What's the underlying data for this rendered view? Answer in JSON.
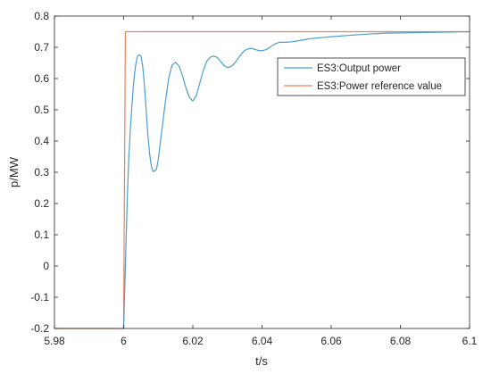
{
  "chart_data": {
    "type": "line",
    "title": "",
    "xlabel": "t/s",
    "ylabel": "p/MW",
    "xlim": [
      5.98,
      6.1
    ],
    "ylim": [
      -0.2,
      0.8
    ],
    "xticks": [
      "5.98",
      "6",
      "6.02",
      "6.04",
      "6.06",
      "6.08",
      "6.1"
    ],
    "yticks": [
      "-0.2",
      "-0.1",
      "0",
      "0.1",
      "0.2",
      "0.3",
      "0.4",
      "0.5",
      "0.6",
      "0.7",
      "0.8"
    ],
    "grid": false,
    "legend_position": "top-right",
    "colors": {
      "output": "#4a9fce",
      "reference": "#e8825e",
      "axis": "#262626"
    },
    "series": [
      {
        "name": "ES3:Output power",
        "key": "output",
        "points": [
          [
            6.0,
            -0.2
          ],
          [
            6.0005,
            0.0
          ],
          [
            6.001,
            0.2
          ],
          [
            6.0015,
            0.35
          ],
          [
            6.002,
            0.45
          ],
          [
            6.0025,
            0.53
          ],
          [
            6.003,
            0.6
          ],
          [
            6.0035,
            0.645
          ],
          [
            6.004,
            0.672
          ],
          [
            6.0045,
            0.676
          ],
          [
            6.005,
            0.672
          ],
          [
            6.0055,
            0.64
          ],
          [
            6.006,
            0.58
          ],
          [
            6.0065,
            0.5
          ],
          [
            6.007,
            0.42
          ],
          [
            6.0075,
            0.36
          ],
          [
            6.008,
            0.32
          ],
          [
            6.0085,
            0.302
          ],
          [
            6.009,
            0.305
          ],
          [
            6.0095,
            0.31
          ],
          [
            6.01,
            0.34
          ],
          [
            6.011,
            0.43
          ],
          [
            6.012,
            0.52
          ],
          [
            6.013,
            0.6
          ],
          [
            6.014,
            0.643
          ],
          [
            6.015,
            0.652
          ],
          [
            6.016,
            0.64
          ],
          [
            6.017,
            0.61
          ],
          [
            6.018,
            0.57
          ],
          [
            6.019,
            0.54
          ],
          [
            6.02,
            0.528
          ],
          [
            6.021,
            0.545
          ],
          [
            6.022,
            0.585
          ],
          [
            6.023,
            0.625
          ],
          [
            6.024,
            0.655
          ],
          [
            6.025,
            0.668
          ],
          [
            6.026,
            0.672
          ],
          [
            6.027,
            0.668
          ],
          [
            6.028,
            0.655
          ],
          [
            6.029,
            0.642
          ],
          [
            6.03,
            0.635
          ],
          [
            6.031,
            0.638
          ],
          [
            6.032,
            0.648
          ],
          [
            6.033,
            0.663
          ],
          [
            6.034,
            0.678
          ],
          [
            6.035,
            0.69
          ],
          [
            6.036,
            0.695
          ],
          [
            6.037,
            0.697
          ],
          [
            6.038,
            0.693
          ],
          [
            6.039,
            0.69
          ],
          [
            6.04,
            0.689
          ],
          [
            6.041,
            0.692
          ],
          [
            6.042,
            0.698
          ],
          [
            6.043,
            0.706
          ],
          [
            6.044,
            0.712
          ],
          [
            6.045,
            0.716
          ],
          [
            6.046,
            0.716
          ],
          [
            6.047,
            0.716
          ],
          [
            6.048,
            0.717
          ],
          [
            6.049,
            0.718
          ],
          [
            6.05,
            0.72
          ],
          [
            6.052,
            0.724
          ],
          [
            6.054,
            0.728
          ],
          [
            6.056,
            0.73
          ],
          [
            6.058,
            0.732
          ],
          [
            6.06,
            0.734
          ],
          [
            6.065,
            0.738
          ],
          [
            6.07,
            0.742
          ],
          [
            6.075,
            0.745
          ],
          [
            6.08,
            0.746
          ],
          [
            6.085,
            0.747
          ],
          [
            6.09,
            0.748
          ],
          [
            6.095,
            0.749
          ],
          [
            6.1,
            0.75
          ]
        ]
      },
      {
        "name": "ES3:Power reference value",
        "key": "reference",
        "points": [
          [
            5.98,
            -0.2
          ],
          [
            6.0,
            -0.2
          ],
          [
            6.0005,
            0.75
          ],
          [
            6.1,
            0.75
          ]
        ]
      }
    ]
  }
}
